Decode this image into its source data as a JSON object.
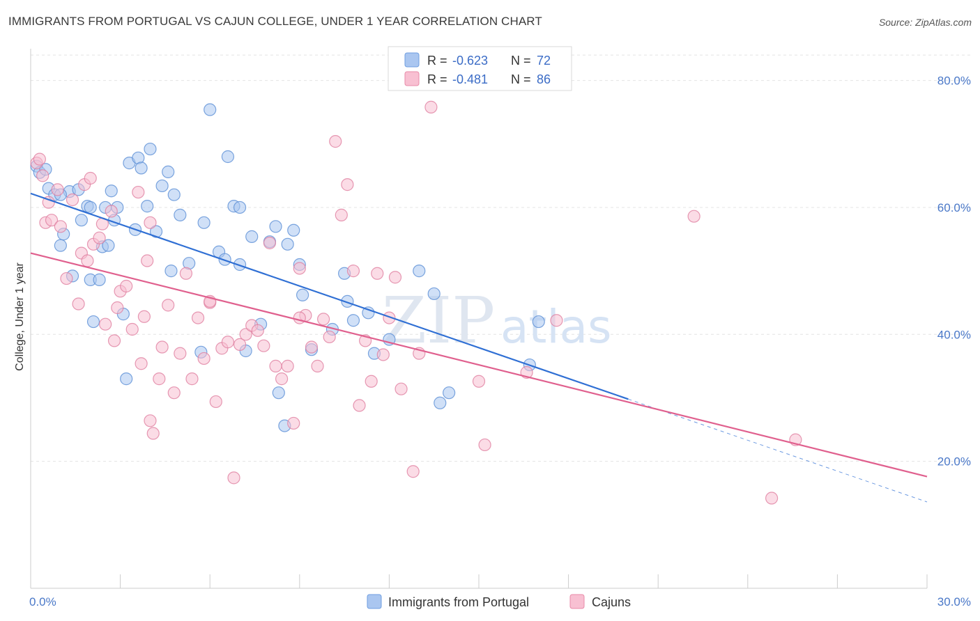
{
  "title": "IMMIGRANTS FROM PORTUGAL VS CAJUN COLLEGE, UNDER 1 YEAR CORRELATION CHART",
  "source": "Source: ZipAtlas.com",
  "watermark": {
    "zip": "ZIP",
    "atlas": "atlas"
  },
  "legend": {
    "r_label": "R =",
    "n_label": "N =",
    "rows": [
      {
        "r": "-0.623",
        "n": "72",
        "color": "#aac6f0",
        "stroke": "#6f9ee0"
      },
      {
        "r": "-0.481",
        "n": "86",
        "color": "#f8c0d2",
        "stroke": "#e88aa8"
      }
    ]
  },
  "bottom_legend": [
    "Immigrants from Portugal",
    "Cajuns"
  ],
  "chart_data": {
    "type": "scatter",
    "xlabel": "",
    "ylabel": "College, Under 1 year",
    "xlim": [
      0,
      30
    ],
    "ylim": [
      0,
      85
    ],
    "x_tick_labels": [
      "0.0%",
      "30.0%"
    ],
    "y_ticks": [
      20,
      40,
      60,
      80
    ],
    "y_tick_labels": [
      "20.0%",
      "40.0%",
      "60.0%",
      "80.0%"
    ],
    "grid": true,
    "legend_position": "top-center",
    "series": [
      {
        "name": "Immigrants from Portugal",
        "fill": "#aac6f0",
        "stroke": "#5b8fd6",
        "line": "#2f6fd4",
        "trend": {
          "x0": 0,
          "y0": 62.2,
          "x1": 20.0,
          "y1": 29.8,
          "dash_to_x": 30,
          "dash_to_y": 13.6
        },
        "points": [
          [
            0.2,
            66.5
          ],
          [
            0.3,
            65.5
          ],
          [
            0.5,
            66.0
          ],
          [
            0.6,
            63.0
          ],
          [
            0.8,
            62.0
          ],
          [
            1.0,
            54.0
          ],
          [
            1.1,
            55.8
          ],
          [
            1.3,
            62.5
          ],
          [
            1.4,
            49.2
          ],
          [
            1.6,
            62.8
          ],
          [
            1.7,
            58.0
          ],
          [
            1.9,
            60.2
          ],
          [
            2.0,
            48.6
          ],
          [
            2.1,
            42.0
          ],
          [
            2.3,
            48.6
          ],
          [
            2.4,
            53.8
          ],
          [
            2.5,
            60.0
          ],
          [
            2.6,
            54.0
          ],
          [
            2.7,
            62.6
          ],
          [
            2.8,
            58.0
          ],
          [
            2.9,
            60.0
          ],
          [
            3.1,
            43.2
          ],
          [
            3.2,
            33.0
          ],
          [
            3.3,
            67.0
          ],
          [
            3.5,
            56.5
          ],
          [
            3.6,
            67.8
          ],
          [
            3.7,
            66.2
          ],
          [
            3.9,
            60.2
          ],
          [
            4.0,
            69.2
          ],
          [
            4.2,
            56.2
          ],
          [
            4.4,
            63.4
          ],
          [
            4.6,
            65.6
          ],
          [
            4.7,
            50.0
          ],
          [
            4.8,
            62.0
          ],
          [
            5.0,
            58.8
          ],
          [
            5.3,
            51.2
          ],
          [
            5.7,
            37.2
          ],
          [
            5.8,
            57.6
          ],
          [
            6.0,
            75.4
          ],
          [
            6.3,
            53.0
          ],
          [
            6.5,
            51.8
          ],
          [
            6.6,
            68.0
          ],
          [
            6.8,
            60.2
          ],
          [
            7.0,
            51.0
          ],
          [
            7.2,
            37.4
          ],
          [
            7.4,
            55.4
          ],
          [
            7.7,
            41.6
          ],
          [
            8.0,
            54.6
          ],
          [
            8.2,
            57.0
          ],
          [
            8.3,
            30.8
          ],
          [
            8.5,
            25.6
          ],
          [
            8.6,
            54.2
          ],
          [
            8.8,
            56.4
          ],
          [
            9.0,
            51.0
          ],
          [
            9.1,
            46.2
          ],
          [
            9.4,
            37.6
          ],
          [
            10.1,
            40.8
          ],
          [
            10.5,
            49.6
          ],
          [
            10.6,
            45.2
          ],
          [
            10.8,
            42.2
          ],
          [
            11.3,
            43.4
          ],
          [
            11.5,
            37.0
          ],
          [
            12.0,
            39.2
          ],
          [
            13.0,
            50.0
          ],
          [
            13.5,
            46.4
          ],
          [
            13.7,
            29.2
          ],
          [
            14.0,
            30.8
          ],
          [
            16.7,
            35.2
          ],
          [
            17.0,
            42.0
          ],
          [
            1.0,
            62.0
          ],
          [
            2.0,
            60.0
          ],
          [
            7.0,
            60.0
          ]
        ]
      },
      {
        "name": "Cajuns",
        "fill": "#f8c0d2",
        "stroke": "#e07fa0",
        "line": "#e0608e",
        "trend": {
          "x0": 0,
          "y0": 52.8,
          "x1": 30,
          "y1": 17.6
        },
        "points": [
          [
            0.2,
            67.0
          ],
          [
            0.3,
            67.6
          ],
          [
            0.4,
            65.0
          ],
          [
            0.5,
            57.6
          ],
          [
            0.6,
            60.8
          ],
          [
            0.7,
            58.0
          ],
          [
            0.9,
            62.8
          ],
          [
            1.0,
            57.0
          ],
          [
            1.2,
            48.8
          ],
          [
            1.4,
            61.2
          ],
          [
            1.6,
            44.8
          ],
          [
            1.7,
            52.8
          ],
          [
            1.8,
            63.6
          ],
          [
            1.9,
            51.6
          ],
          [
            2.0,
            64.6
          ],
          [
            2.1,
            54.2
          ],
          [
            2.3,
            55.2
          ],
          [
            2.4,
            57.4
          ],
          [
            2.5,
            41.6
          ],
          [
            2.7,
            59.4
          ],
          [
            2.8,
            39.0
          ],
          [
            2.9,
            44.2
          ],
          [
            3.0,
            46.8
          ],
          [
            3.2,
            47.6
          ],
          [
            3.4,
            40.8
          ],
          [
            3.6,
            62.4
          ],
          [
            3.7,
            35.4
          ],
          [
            3.8,
            42.8
          ],
          [
            3.9,
            51.6
          ],
          [
            4.0,
            57.6
          ],
          [
            4.1,
            24.4
          ],
          [
            4.3,
            33.0
          ],
          [
            4.4,
            38.0
          ],
          [
            4.6,
            44.6
          ],
          [
            4.8,
            30.8
          ],
          [
            5.0,
            37.0
          ],
          [
            5.2,
            49.6
          ],
          [
            5.4,
            33.0
          ],
          [
            5.6,
            42.6
          ],
          [
            5.8,
            36.2
          ],
          [
            6.0,
            45.0
          ],
          [
            6.2,
            29.4
          ],
          [
            6.4,
            37.8
          ],
          [
            6.6,
            38.8
          ],
          [
            6.8,
            17.4
          ],
          [
            7.0,
            38.4
          ],
          [
            7.2,
            40.0
          ],
          [
            7.4,
            41.4
          ],
          [
            7.6,
            40.6
          ],
          [
            7.8,
            38.2
          ],
          [
            8.0,
            54.4
          ],
          [
            8.2,
            35.0
          ],
          [
            8.4,
            33.0
          ],
          [
            8.6,
            35.0
          ],
          [
            8.8,
            26.0
          ],
          [
            9.0,
            50.4
          ],
          [
            9.2,
            43.0
          ],
          [
            9.4,
            38.0
          ],
          [
            9.6,
            35.0
          ],
          [
            9.8,
            42.4
          ],
          [
            10.0,
            39.6
          ],
          [
            10.2,
            70.4
          ],
          [
            10.4,
            58.8
          ],
          [
            10.6,
            63.6
          ],
          [
            10.8,
            50.0
          ],
          [
            11.0,
            28.8
          ],
          [
            11.2,
            39.0
          ],
          [
            11.4,
            32.6
          ],
          [
            11.6,
            49.6
          ],
          [
            11.8,
            36.8
          ],
          [
            12.0,
            42.6
          ],
          [
            12.2,
            49.0
          ],
          [
            12.4,
            31.4
          ],
          [
            12.8,
            18.4
          ],
          [
            13.0,
            37.0
          ],
          [
            13.4,
            75.8
          ],
          [
            15.0,
            32.6
          ],
          [
            15.2,
            22.6
          ],
          [
            16.6,
            34.0
          ],
          [
            17.6,
            42.2
          ],
          [
            22.2,
            58.6
          ],
          [
            24.8,
            14.2
          ],
          [
            25.6,
            23.4
          ],
          [
            9.0,
            42.6
          ],
          [
            4.0,
            26.4
          ],
          [
            6.0,
            45.2
          ]
        ]
      }
    ]
  }
}
